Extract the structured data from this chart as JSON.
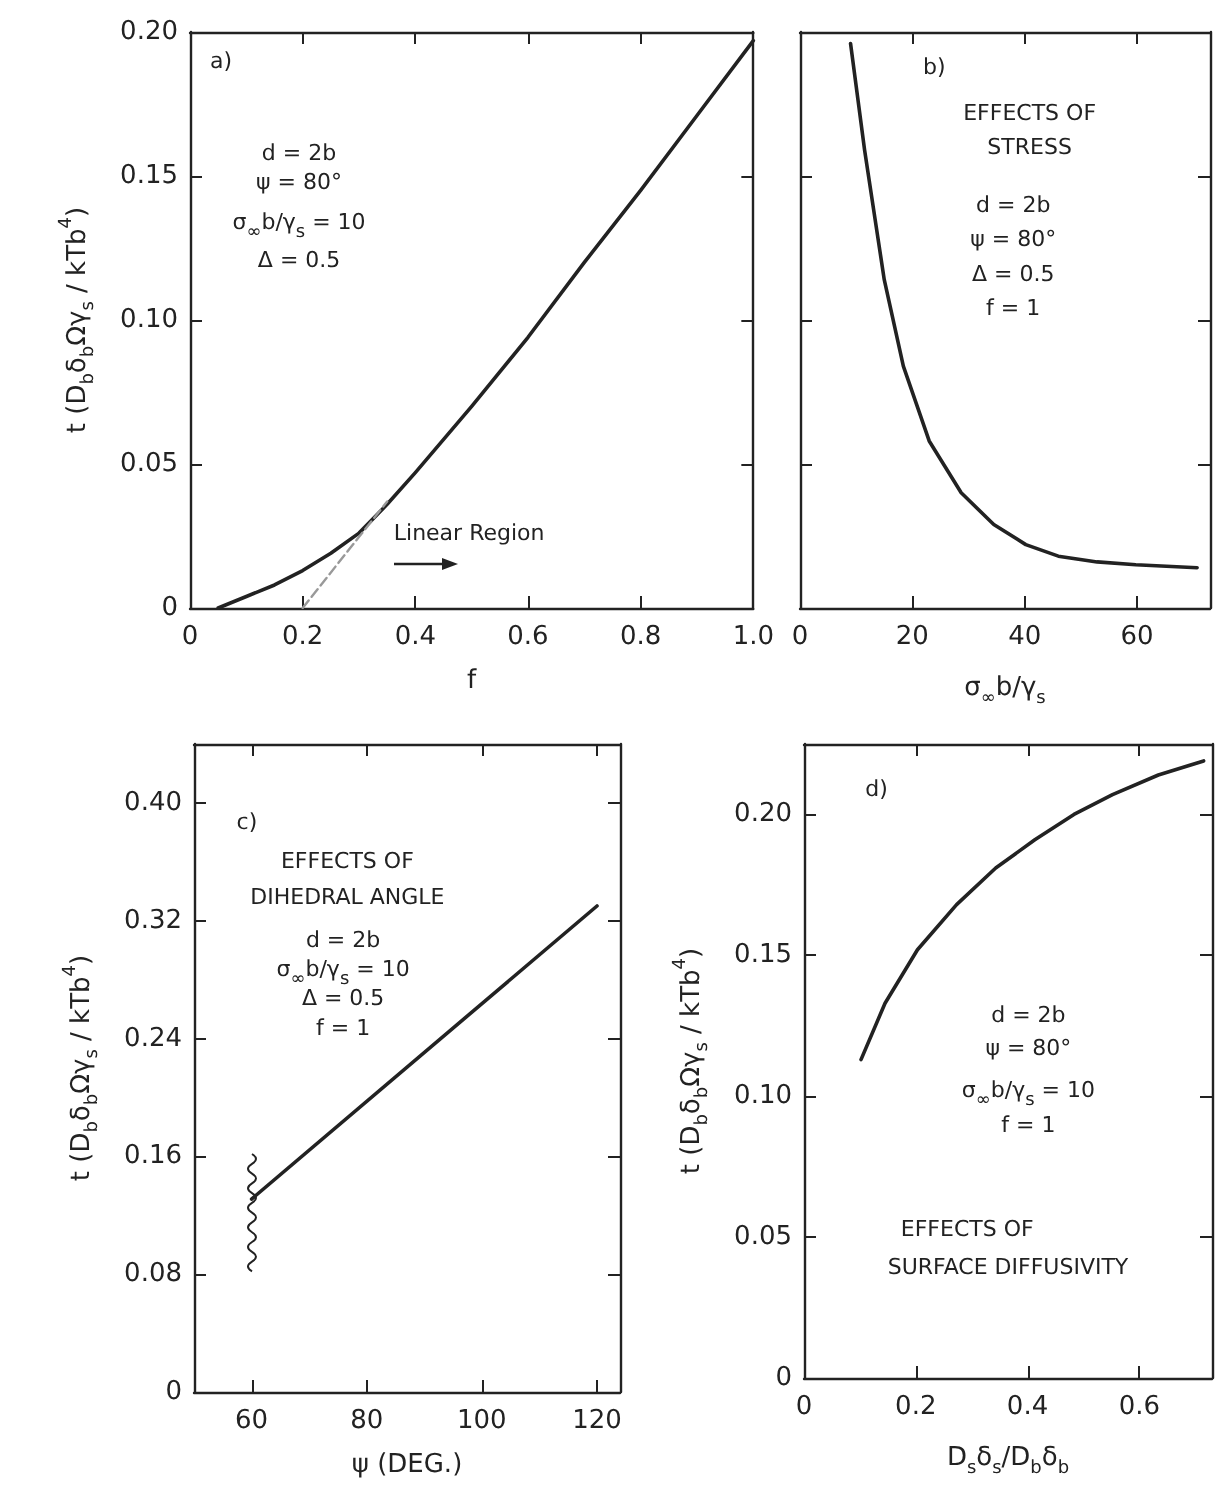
{
  "chart_data": [
    {
      "type": "line",
      "ylabel": "t (D$_{b}$δ$_{b}$Ωγ$_{s}$ / kTb$^{4}$)",
      "xlabel": "f",
      "xlim": [
        0,
        1
      ],
      "xticks": [
        0,
        0.2,
        0.4,
        0.6,
        0.8,
        {
          "value": 1,
          "label": "1.0"
        }
      ],
      "ylim": [
        0,
        0.2
      ],
      "yticks": [
        0,
        0.05,
        {
          "value": 0.1,
          "label": "0.10"
        },
        0.15,
        {
          "value": 0.2,
          "label": "0.20"
        }
      ],
      "line_style": "solid",
      "annotations": [
        "a)",
        "d = 2b",
        "ψ = 80°",
        "σ$_{∞}$b/γ$_{s}$ = 10",
        "Δ = 0.5",
        "Linear Region"
      ],
      "series": [
        {
          "color": "#222222",
          "x": [
            0.05,
            0.1,
            0.15,
            0.2,
            0.25,
            0.3,
            0.35,
            0.4,
            0.5,
            0.6,
            0.7,
            0.8,
            0.9,
            1.0
          ],
          "values": [
            0,
            0.004,
            0.008,
            0.013,
            0.019,
            0.026,
            0.036,
            0.047,
            0.07,
            0.094,
            0.12,
            0.145,
            0.171,
            0.197
          ]
        },
        {
          "color": "#999999",
          "line_style": "dashed",
          "x": [
            0.2,
            0.35
          ],
          "values": [
            0,
            0.037
          ]
        }
      ]
    },
    {
      "type": "line",
      "xlabel": "σ$_{∞}$b/γ$_{s}$",
      "xlim": [
        0,
        73
      ],
      "xticks": [
        0,
        20,
        40,
        60
      ],
      "ylim": [
        0,
        0.2
      ],
      "yticks": [
        {
          "value": 0,
          "label": null
        },
        {
          "value": 0.05,
          "label": null
        },
        {
          "value": 0.1,
          "label": null
        },
        {
          "value": 0.15,
          "label": null
        },
        {
          "value": 0.2,
          "label": null
        }
      ],
      "tick_labels": "x",
      "line_style": "solid",
      "annotations": [
        "b)",
        "EFFECTS OF",
        "STRESS",
        "d = 2b",
        "ψ = 80°",
        "Δ = 0.5",
        "f = 1"
      ],
      "series": [
        {
          "color": "#222222",
          "x": [
            9,
            11.5,
            15,
            18.4,
            23,
            28.7,
            34.5,
            40.2,
            46,
            52.9,
            59.8,
            70.7
          ],
          "values": [
            0.196,
            0.159,
            0.114,
            0.084,
            0.058,
            0.04,
            0.029,
            0.022,
            0.018,
            0.016,
            0.015,
            0.014
          ]
        }
      ]
    },
    {
      "type": "line",
      "ylabel": "t (D$_{b}$δ$_{b}$Ωγ$_{s}$ / kTb$^{4}$)",
      "xlabel": "ψ (DEG.)",
      "xlim": [
        50,
        124
      ],
      "xticks": [
        60,
        80,
        100,
        120
      ],
      "ylim": [
        0,
        0.44
      ],
      "yticks": [
        0,
        0.08,
        0.16,
        0.24,
        0.32,
        {
          "value": 0.4,
          "label": "0.40"
        }
      ],
      "line_style": "solid",
      "annotations": [
        "c)",
        "EFFECTS OF",
        "DIHEDRAL ANGLE",
        "d = 2b",
        "σ$_{∞}$b/γ$_{s}$ = 10",
        "Δ = 0.5",
        "f = 1"
      ],
      "series": [
        {
          "color": "#222222",
          "x": [
            60,
            120
          ],
          "values": [
            0.131,
            0.33
          ]
        }
      ]
    },
    {
      "type": "line",
      "ylabel": "t (D$_{b}$δ$_{b}$Ωγ$_{s}$ / kTb$^{4}$)",
      "xlabel": "D$_{s}$δ$_{s}$/D$_{b}$δ$_{b}$",
      "xlim": [
        0,
        0.73
      ],
      "xticks": [
        0,
        0.2,
        0.4,
        0.6
      ],
      "ylim": [
        0,
        0.225
      ],
      "yticks": [
        0,
        0.05,
        {
          "value": 0.1,
          "label": "0.10"
        },
        0.15,
        {
          "value": 0.2,
          "label": "0.20"
        }
      ],
      "line_style": "solid",
      "annotations": [
        "d)",
        "d = 2b",
        "ψ = 80°",
        "σ$_{∞}$b/γ$_{s}$ = 10",
        "f = 1",
        "EFFECTS OF",
        "SURFACE DIFFUSIVITY"
      ],
      "series": [
        {
          "color": "#222222",
          "x": [
            0.102,
            0.145,
            0.203,
            0.273,
            0.343,
            0.413,
            0.483,
            0.552,
            0.634,
            0.715
          ],
          "values": [
            0.113,
            0.133,
            0.152,
            0.168,
            0.181,
            0.191,
            0.2,
            0.207,
            0.214,
            0.219
          ]
        }
      ]
    }
  ]
}
